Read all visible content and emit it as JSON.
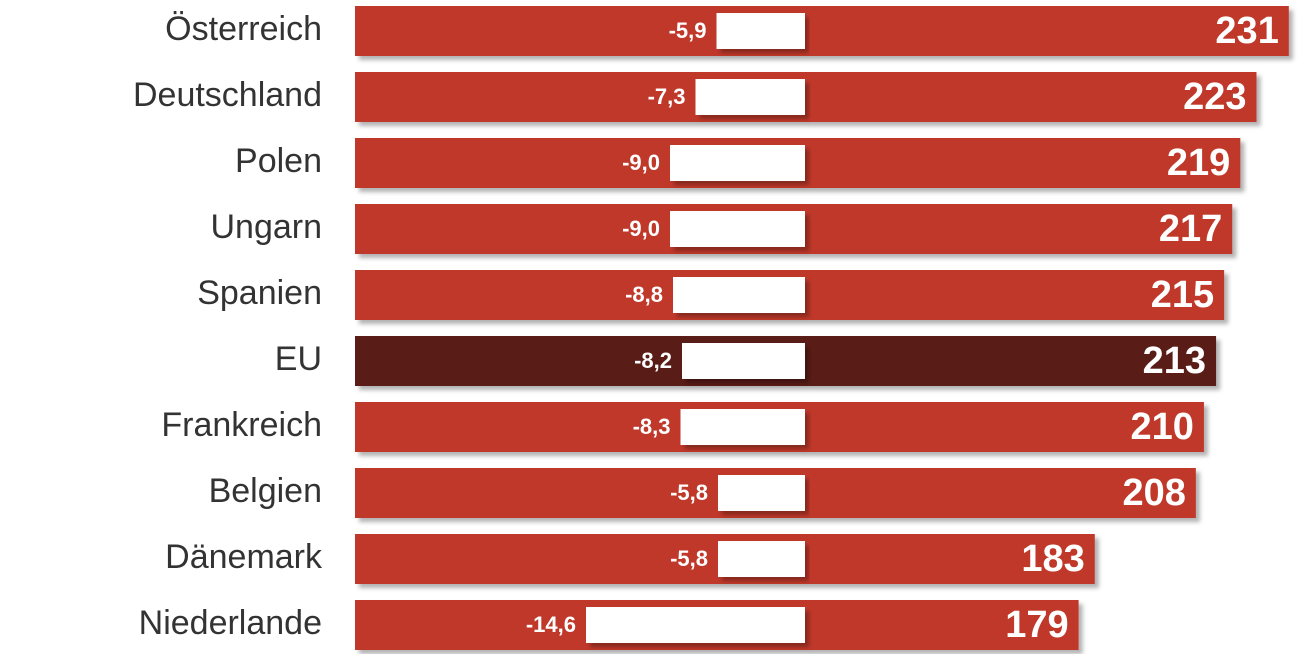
{
  "chart_data": {
    "type": "bar",
    "categories": [
      "Österreich",
      "Deutschland",
      "Polen",
      "Ungarn",
      "Spanien",
      "EU",
      "Frankreich",
      "Belgien",
      "Dänemark",
      "Niederlande"
    ],
    "series": [
      {
        "values": [
          231,
          223,
          219,
          217,
          215,
          213,
          210,
          208,
          183,
          179
        ],
        "colors": [
          "#c0392b",
          "#c0392b",
          "#c0392b",
          "#c0392b",
          "#c0392b",
          "#5a1a12",
          "#c0392b",
          "#c0392b",
          "#c0392b",
          "#c0392b"
        ]
      },
      {
        "color": "#ffffff",
        "axis": "x2",
        "values": [
          -5.9,
          -7.3,
          -9.0,
          -9.0,
          -8.8,
          -8.2,
          -8.3,
          -5.8,
          -5.8,
          -14.6
        ],
        "value_labels": [
          "-5,9",
          "-7,3",
          "-9,0",
          "-9,0",
          "-8,8",
          "-8,2",
          "-8,3",
          "-5,8",
          "-5,8",
          "-14,6"
        ]
      }
    ],
    "xlim": [
      0,
      235
    ],
    "x2lim": [
      -15,
      0
    ]
  }
}
